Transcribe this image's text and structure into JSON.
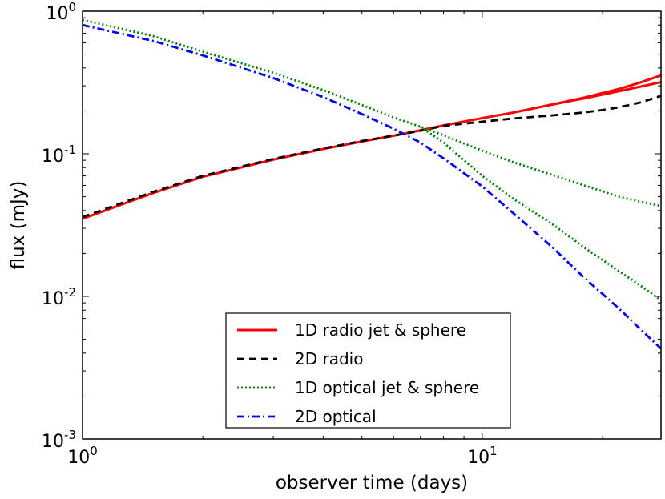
{
  "chart_data": {
    "type": "line",
    "title": "",
    "xlabel": "observer time (days)",
    "ylabel": "flux (mJy)",
    "xscale": "log",
    "yscale": "log",
    "xlim": [
      1,
      28
    ],
    "ylim": [
      0.001,
      1
    ],
    "legend_position": "lower-center",
    "x_ticks": [
      {
        "value": 1,
        "base": "10",
        "exp": "0"
      },
      {
        "value": 10,
        "base": "10",
        "exp": "1"
      }
    ],
    "y_ticks": [
      {
        "value": 0.001,
        "base": "10",
        "exp": "-3"
      },
      {
        "value": 0.01,
        "base": "10",
        "exp": "-2"
      },
      {
        "value": 0.1,
        "base": "10",
        "exp": "-1"
      },
      {
        "value": 1,
        "base": "10",
        "exp": "0"
      }
    ],
    "series": [
      {
        "name": "1D radio jet & sphere",
        "color": "#ff0000",
        "style": "solid",
        "legend": true,
        "points": [
          [
            1,
            0.035
          ],
          [
            1.5,
            0.053
          ],
          [
            2,
            0.069
          ],
          [
            3,
            0.091
          ],
          [
            4,
            0.108
          ],
          [
            5,
            0.122
          ],
          [
            6,
            0.134
          ],
          [
            7,
            0.146
          ],
          [
            8,
            0.158
          ],
          [
            10,
            0.178
          ],
          [
            12,
            0.195
          ],
          [
            15,
            0.222
          ],
          [
            18,
            0.248
          ],
          [
            22,
            0.285
          ],
          [
            25,
            0.318
          ],
          [
            28,
            0.355
          ]
        ]
      },
      {
        "name": "1D radio jet & sphere (sphere branch)",
        "color": "#ff0000",
        "style": "solid",
        "legend": false,
        "points": [
          [
            15,
            0.222
          ],
          [
            18,
            0.245
          ],
          [
            22,
            0.275
          ],
          [
            25,
            0.297
          ],
          [
            28,
            0.318
          ]
        ]
      },
      {
        "name": "2D radio",
        "color": "#000000",
        "style": "dashed",
        "legend": true,
        "points": [
          [
            1,
            0.036
          ],
          [
            1.5,
            0.054
          ],
          [
            2,
            0.07
          ],
          [
            3,
            0.092
          ],
          [
            4,
            0.109
          ],
          [
            5,
            0.123
          ],
          [
            6,
            0.134
          ],
          [
            7,
            0.145
          ],
          [
            8,
            0.157
          ],
          [
            10,
            0.168
          ],
          [
            12,
            0.177
          ],
          [
            15,
            0.186
          ],
          [
            18,
            0.195
          ],
          [
            20,
            0.203
          ],
          [
            22,
            0.212
          ],
          [
            25,
            0.23
          ],
          [
            28,
            0.255
          ]
        ]
      },
      {
        "name": "1D optical jet & sphere",
        "color": "#008000",
        "style": "dotted",
        "legend": true,
        "points": [
          [
            1,
            0.87
          ],
          [
            1.5,
            0.67
          ],
          [
            2,
            0.52
          ],
          [
            3,
            0.37
          ],
          [
            4,
            0.28
          ],
          [
            5,
            0.22
          ],
          [
            6,
            0.18
          ],
          [
            7,
            0.155
          ],
          [
            8,
            0.135
          ],
          [
            10,
            0.105
          ],
          [
            12,
            0.087
          ],
          [
            15,
            0.071
          ],
          [
            18,
            0.06
          ],
          [
            22,
            0.05
          ],
          [
            25,
            0.046
          ],
          [
            28,
            0.043
          ]
        ]
      },
      {
        "name": "1D optical jet & sphere (sphere branch)",
        "color": "#008000",
        "style": "dotted",
        "legend": false,
        "points": [
          [
            7,
            0.155
          ],
          [
            8,
            0.12
          ],
          [
            9,
            0.09
          ],
          [
            10,
            0.07
          ],
          [
            12,
            0.048
          ],
          [
            15,
            0.032
          ],
          [
            18,
            0.022
          ],
          [
            22,
            0.015
          ],
          [
            25,
            0.0118
          ],
          [
            28,
            0.0094
          ]
        ]
      },
      {
        "name": "2D optical",
        "color": "#0000ff",
        "style": "dashdot",
        "legend": true,
        "points": [
          [
            1,
            0.8
          ],
          [
            1.5,
            0.62
          ],
          [
            2,
            0.49
          ],
          [
            3,
            0.34
          ],
          [
            4,
            0.25
          ],
          [
            5,
            0.19
          ],
          [
            6,
            0.15
          ],
          [
            7,
            0.12
          ],
          [
            8,
            0.093
          ],
          [
            10,
            0.059
          ],
          [
            12,
            0.038
          ],
          [
            15,
            0.022
          ],
          [
            18,
            0.0135
          ],
          [
            22,
            0.0082
          ],
          [
            25,
            0.0058
          ],
          [
            28,
            0.0043
          ]
        ]
      }
    ]
  }
}
